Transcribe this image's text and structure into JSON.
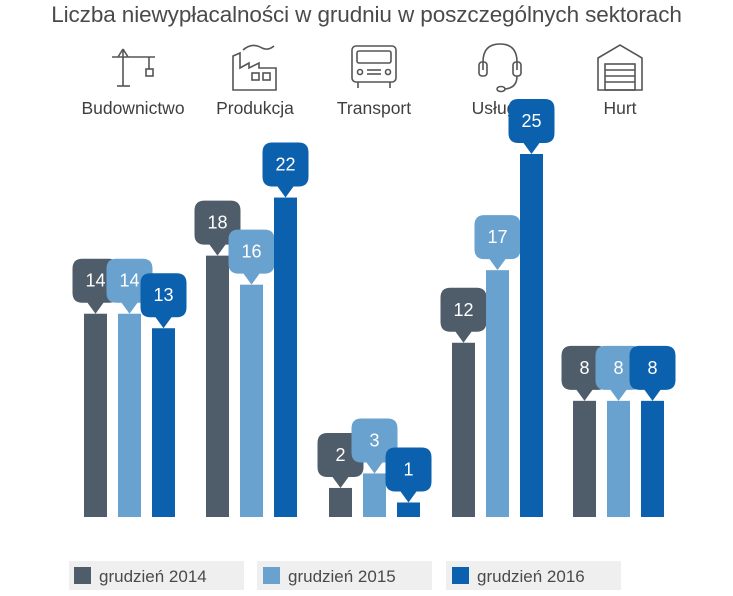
{
  "chart_data": {
    "type": "bar",
    "title": "Liczba niewypłacalności w grudniu w poszczególnych sektorach",
    "categories": [
      "Budownictwo",
      "Produkcja",
      "Transport",
      "Usługi",
      "Hurt"
    ],
    "category_icons": [
      "crane-icon",
      "factory-icon",
      "bus-icon",
      "headset-icon",
      "warehouse-icon"
    ],
    "series": [
      {
        "name": "grudzień 2014",
        "color": "#4f5d6a",
        "values": [
          14,
          18,
          2,
          12,
          8
        ]
      },
      {
        "name": "grudzień 2015",
        "color": "#6aa2cf",
        "values": [
          14,
          16,
          3,
          17,
          8
        ]
      },
      {
        "name": "grudzień 2016",
        "color": "#0b61ad",
        "values": [
          13,
          22,
          1,
          25,
          8
        ]
      }
    ],
    "ylim": [
      0,
      25
    ],
    "xlabel": "",
    "ylabel": "",
    "grid": false,
    "legend_position": "bottom"
  }
}
